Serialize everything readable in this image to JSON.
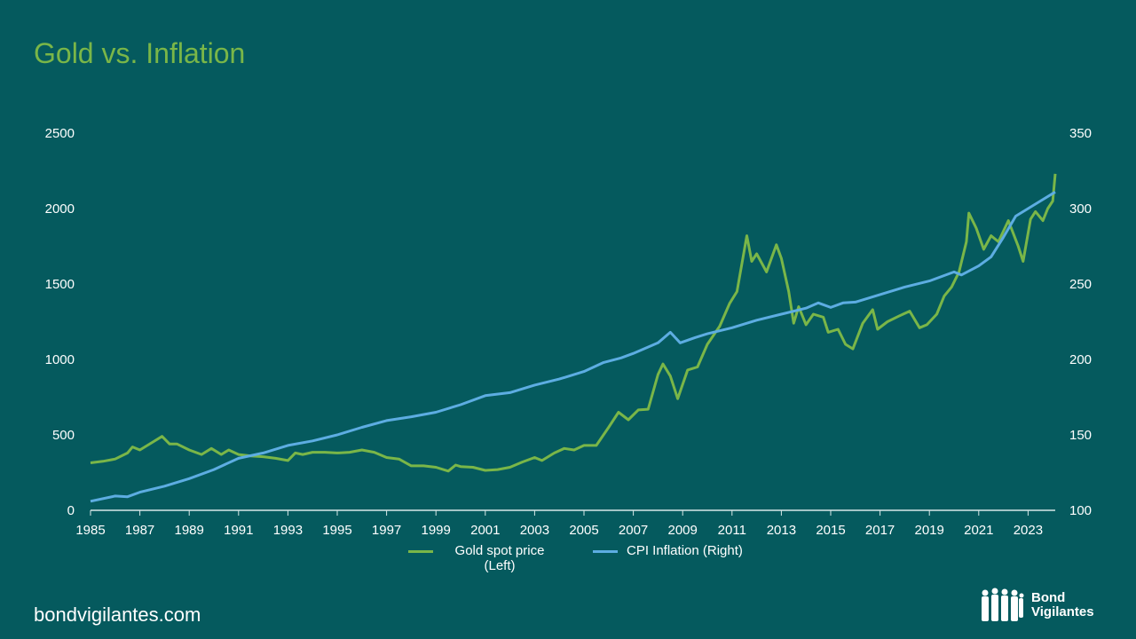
{
  "title": "Gold vs. Inflation",
  "footer": "bondvigilantes.com",
  "logo": {
    "line1": "Bond",
    "line2": "Vigilantes"
  },
  "colors": {
    "background": "#055a5e",
    "gold": "#7ab648",
    "cpi": "#5dade2",
    "title": "#7ab648"
  },
  "chart_data": {
    "type": "line",
    "title": "Gold vs. Inflation",
    "xlim": [
      1985,
      2024.1
    ],
    "x_ticks": [
      "1985",
      "1987",
      "1989",
      "1991",
      "1993",
      "1995",
      "1997",
      "1999",
      "2001",
      "2003",
      "2005",
      "2007",
      "2009",
      "2011",
      "2013",
      "2015",
      "2017",
      "2019",
      "2021",
      "2023"
    ],
    "y_left": {
      "ylim": [
        0,
        2500
      ],
      "ticks": [
        "0",
        "500",
        "1000",
        "1500",
        "2000",
        "2500"
      ]
    },
    "y_right": {
      "ylim": [
        100,
        350
      ],
      "ticks": [
        "100",
        "150",
        "200",
        "250",
        "300",
        "350"
      ]
    },
    "grid": false,
    "legend_position": "bottom",
    "series": [
      {
        "name": "Gold spot price (Left)",
        "axis": "left",
        "color": "#7ab648",
        "points": [
          [
            1985.0,
            315
          ],
          [
            1985.5,
            325
          ],
          [
            1986.0,
            340
          ],
          [
            1986.5,
            380
          ],
          [
            1986.7,
            420
          ],
          [
            1987.0,
            400
          ],
          [
            1987.5,
            450
          ],
          [
            1987.9,
            490
          ],
          [
            1988.2,
            440
          ],
          [
            1988.5,
            440
          ],
          [
            1989.0,
            400
          ],
          [
            1989.5,
            370
          ],
          [
            1989.9,
            410
          ],
          [
            1990.3,
            370
          ],
          [
            1990.6,
            400
          ],
          [
            1991.0,
            370
          ],
          [
            1991.5,
            360
          ],
          [
            1992.0,
            355
          ],
          [
            1992.5,
            345
          ],
          [
            1993.0,
            330
          ],
          [
            1993.3,
            380
          ],
          [
            1993.6,
            370
          ],
          [
            1994.0,
            385
          ],
          [
            1994.5,
            385
          ],
          [
            1995.0,
            380
          ],
          [
            1995.5,
            385
          ],
          [
            1996.0,
            400
          ],
          [
            1996.5,
            385
          ],
          [
            1997.0,
            350
          ],
          [
            1997.5,
            340
          ],
          [
            1998.0,
            295
          ],
          [
            1998.5,
            295
          ],
          [
            1999.0,
            285
          ],
          [
            1999.5,
            260
          ],
          [
            1999.8,
            300
          ],
          [
            2000.0,
            290
          ],
          [
            2000.5,
            285
          ],
          [
            2001.0,
            265
          ],
          [
            2001.5,
            270
          ],
          [
            2002.0,
            285
          ],
          [
            2002.5,
            320
          ],
          [
            2003.0,
            350
          ],
          [
            2003.3,
            330
          ],
          [
            2003.8,
            380
          ],
          [
            2004.2,
            410
          ],
          [
            2004.6,
            400
          ],
          [
            2005.0,
            430
          ],
          [
            2005.5,
            430
          ],
          [
            2006.0,
            550
          ],
          [
            2006.4,
            650
          ],
          [
            2006.8,
            600
          ],
          [
            2007.2,
            665
          ],
          [
            2007.6,
            670
          ],
          [
            2008.0,
            900
          ],
          [
            2008.2,
            970
          ],
          [
            2008.5,
            890
          ],
          [
            2008.8,
            740
          ],
          [
            2009.2,
            930
          ],
          [
            2009.6,
            950
          ],
          [
            2010.0,
            1100
          ],
          [
            2010.5,
            1220
          ],
          [
            2010.9,
            1370
          ],
          [
            2011.2,
            1450
          ],
          [
            2011.6,
            1820
          ],
          [
            2011.8,
            1650
          ],
          [
            2012.0,
            1700
          ],
          [
            2012.4,
            1580
          ],
          [
            2012.8,
            1760
          ],
          [
            2013.0,
            1670
          ],
          [
            2013.3,
            1450
          ],
          [
            2013.5,
            1240
          ],
          [
            2013.7,
            1350
          ],
          [
            2014.0,
            1230
          ],
          [
            2014.3,
            1300
          ],
          [
            2014.7,
            1280
          ],
          [
            2014.9,
            1180
          ],
          [
            2015.3,
            1200
          ],
          [
            2015.6,
            1100
          ],
          [
            2015.9,
            1070
          ],
          [
            2016.3,
            1240
          ],
          [
            2016.7,
            1330
          ],
          [
            2016.9,
            1200
          ],
          [
            2017.3,
            1250
          ],
          [
            2017.8,
            1290
          ],
          [
            2018.2,
            1320
          ],
          [
            2018.6,
            1210
          ],
          [
            2018.9,
            1230
          ],
          [
            2019.3,
            1300
          ],
          [
            2019.6,
            1420
          ],
          [
            2019.9,
            1480
          ],
          [
            2020.2,
            1580
          ],
          [
            2020.5,
            1780
          ],
          [
            2020.6,
            1970
          ],
          [
            2020.9,
            1870
          ],
          [
            2021.2,
            1730
          ],
          [
            2021.5,
            1820
          ],
          [
            2021.8,
            1780
          ],
          [
            2022.2,
            1920
          ],
          [
            2022.6,
            1750
          ],
          [
            2022.8,
            1650
          ],
          [
            2023.1,
            1930
          ],
          [
            2023.3,
            1980
          ],
          [
            2023.6,
            1920
          ],
          [
            2023.8,
            2000
          ],
          [
            2024.0,
            2050
          ],
          [
            2024.1,
            2230
          ]
        ]
      },
      {
        "name": "CPI Inflation (Right)",
        "axis": "right",
        "color": "#5dade2",
        "points": [
          [
            1985.0,
            106
          ],
          [
            1986.0,
            109.5
          ],
          [
            1986.5,
            109
          ],
          [
            1987.0,
            112
          ],
          [
            1988.0,
            116
          ],
          [
            1989.0,
            121
          ],
          [
            1990.0,
            127
          ],
          [
            1991.0,
            134.5
          ],
          [
            1992.0,
            138
          ],
          [
            1993.0,
            143
          ],
          [
            1994.0,
            146
          ],
          [
            1995.0,
            150
          ],
          [
            1996.0,
            155
          ],
          [
            1997.0,
            159.5
          ],
          [
            1998.0,
            162
          ],
          [
            1999.0,
            165
          ],
          [
            2000.0,
            170
          ],
          [
            2001.0,
            176
          ],
          [
            2002.0,
            178
          ],
          [
            2003.0,
            183
          ],
          [
            2004.0,
            187
          ],
          [
            2005.0,
            192
          ],
          [
            2005.8,
            198
          ],
          [
            2006.5,
            201
          ],
          [
            2007.0,
            204
          ],
          [
            2008.0,
            211
          ],
          [
            2008.5,
            218
          ],
          [
            2008.9,
            211
          ],
          [
            2009.5,
            214.5
          ],
          [
            2010.0,
            217
          ],
          [
            2011.0,
            221
          ],
          [
            2012.0,
            226
          ],
          [
            2013.0,
            230
          ],
          [
            2014.0,
            234
          ],
          [
            2014.5,
            237.5
          ],
          [
            2015.0,
            234.5
          ],
          [
            2015.5,
            237.5
          ],
          [
            2016.0,
            238
          ],
          [
            2017.0,
            243
          ],
          [
            2018.0,
            248
          ],
          [
            2019.0,
            252
          ],
          [
            2020.0,
            258
          ],
          [
            2020.3,
            256
          ],
          [
            2021.0,
            262
          ],
          [
            2021.5,
            268
          ],
          [
            2022.0,
            281
          ],
          [
            2022.5,
            295
          ],
          [
            2023.0,
            300
          ],
          [
            2023.5,
            305
          ],
          [
            2024.1,
            311
          ]
        ]
      }
    ],
    "legend": {
      "gold_line1": "Gold spot price",
      "gold_line2": "(Left)",
      "cpi": "CPI Inflation (Right)"
    }
  }
}
